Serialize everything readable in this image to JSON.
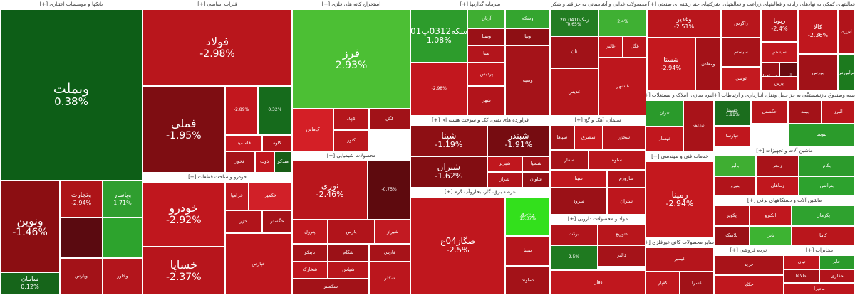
{
  "sectors": [
    {
      "id": "banks",
      "title": "بانکها و موسسات اعتباری [+]",
      "tiles": [
        {
          "name": "وبملت",
          "pct": "0.38%",
          "color": "#0d5e17",
          "size": "xl"
        },
        {
          "name": "ونوین",
          "pct": "-1.46%",
          "color": "#8b0e12",
          "size": "l"
        },
        {
          "name": "وتجارت",
          "pct": "-2.94%",
          "color": "#ad1418",
          "size": "s"
        },
        {
          "name": "وپاسار",
          "pct": "1.71%",
          "color": "#2f9e2f",
          "size": "s"
        },
        {
          "name": "سامان",
          "pct": "0.12%",
          "color": "#16651a",
          "size": "s"
        },
        {
          "name": "",
          "pct": "",
          "color": "#5a0a10",
          "size": "xs"
        },
        {
          "name": "",
          "pct": "",
          "color": "#2da32d",
          "size": "xs"
        },
        {
          "name": "وخاور",
          "pct": "",
          "color": "#b3151c",
          "size": "xs"
        },
        {
          "name": "وپارس",
          "pct": "",
          "color": "#a31218",
          "size": "xs"
        }
      ]
    },
    {
      "id": "metals",
      "title": "فلزات اساسی [+]",
      "tiles": [
        {
          "name": "فولاد",
          "pct": "-2.98%",
          "color": "#b9161c",
          "size": "l"
        },
        {
          "name": "فملی",
          "pct": "-1.95%",
          "color": "#7e0d12",
          "size": "l"
        },
        {
          "name": "",
          "pct": "-2.89%",
          "color": "#c2171e",
          "size": "xs"
        },
        {
          "name": "",
          "pct": "0.32%",
          "color": "#166b1c",
          "size": "xs"
        },
        {
          "name": "فاسمینا",
          "pct": "",
          "color": "#c81a22",
          "size": "xs"
        },
        {
          "name": "کاوه",
          "pct": "",
          "color": "#b1141a",
          "size": "xs"
        },
        {
          "name": "فخوز",
          "pct": "",
          "color": "#a51319",
          "size": "xs"
        },
        {
          "name": "ذوب",
          "pct": "",
          "color": "#c0161d",
          "size": "xs"
        },
        {
          "name": "میدکو",
          "pct": "",
          "color": "#185d16",
          "size": "xs"
        }
      ]
    },
    {
      "id": "mining",
      "title": "استخراج کانه های فلزی [+]",
      "tiles": [
        {
          "name": "فرز",
          "pct": "2.93%",
          "color": "#4cbf34",
          "size": "l"
        },
        {
          "name": "کچاد",
          "pct": "",
          "color": "#b5161c",
          "size": "xs"
        },
        {
          "name": "کگل",
          "pct": "",
          "color": "#a11218",
          "size": "xs"
        },
        {
          "name": "کنور",
          "pct": "",
          "color": "#bb171d",
          "size": "xs"
        },
        {
          "name": "ک‌ماس",
          "pct": "",
          "color": "#d41f26",
          "size": "xs"
        }
      ]
    },
    {
      "id": "investment",
      "title": "سرمایه گذاریها [+]",
      "tiles": [
        {
          "name": "سکه0312پ01",
          "pct": "1.08%",
          "color": "#2d9c2c",
          "size": "m"
        },
        {
          "name": "",
          "pct": "-2.98%",
          "color": "#c2171e",
          "size": "xs"
        },
        {
          "name": "آریان",
          "pct": "",
          "color": "#3fae32",
          "size": "xs"
        },
        {
          "name": "وسکه",
          "pct": "",
          "color": "#34a52f",
          "size": "xs"
        },
        {
          "name": "ویپا",
          "pct": "",
          "color": "#8e0f14",
          "size": "xs"
        },
        {
          "name": "وصنا",
          "pct": "",
          "color": "#9a1117",
          "size": "xs"
        },
        {
          "name": "صبا",
          "pct": "",
          "color": "#b3151c",
          "size": "xs"
        },
        {
          "name": "پردیس",
          "pct": "",
          "color": "#c0161d",
          "size": "xs"
        },
        {
          "name": "شهر",
          "pct": "",
          "color": "#b2141b",
          "size": "xs"
        },
        {
          "name": "وسپه",
          "pct": "",
          "color": "#a51319",
          "size": "xs"
        }
      ]
    },
    {
      "id": "food",
      "title": "محصولات غذایی و آشامیدنی به جز قند و شکر [+]",
      "tiles": [
        {
          "name": "زمگ0410_20",
          "pct": "0.65%",
          "color": "#237d22",
          "size": "xs"
        },
        {
          "name": "",
          "pct": "2.4%",
          "color": "#3fb033",
          "size": "xs"
        },
        {
          "name": "غگل",
          "pct": "",
          "color": "#b9161c",
          "size": "xs"
        },
        {
          "name": "غالبر",
          "pct": "",
          "color": "#c0171e",
          "size": "xs"
        },
        {
          "name": "نان",
          "pct": "",
          "color": "#a11218",
          "size": "xs"
        },
        {
          "name": "غدیس",
          "pct": "",
          "color": "#b4151b",
          "size": "xs"
        },
        {
          "name": "غبشهر",
          "pct": "",
          "color": "#bd161d",
          "size": "xs"
        }
      ]
    },
    {
      "id": "multi",
      "title": "شرکتهای چند رشته ای صنعتی [+]",
      "tiles": [
        {
          "name": "وغدیر",
          "pct": "-2.51%",
          "color": "#b9161c",
          "size": "s"
        },
        {
          "name": "شستا",
          "pct": "-2.94%",
          "color": "#c4181e",
          "size": "s"
        },
        {
          "name": "ومعادن",
          "pct": "",
          "color": "#a31218",
          "size": "xs"
        }
      ]
    },
    {
      "id": "water",
      "title": "زراعت و فعالیتهای وابسته به آن [+]",
      "tiles": [
        {
          "name": "زاگرس",
          "pct": "",
          "color": "#b8161c",
          "size": "xs"
        },
        {
          "name": "سیستم",
          "pct": "",
          "color": "#a71319",
          "size": "xs"
        },
        {
          "name": "توسن",
          "pct": "",
          "color": "#c41a20",
          "size": "xs"
        }
      ]
    },
    {
      "id": "it",
      "title": "رایانه و فعالیتهای وابسته به آن [+]",
      "tiles": [
        {
          "name": "رپویا",
          "pct": "-2.4%",
          "color": "#b5151c",
          "size": "s"
        },
        {
          "name": "سیستم",
          "pct": "",
          "color": "#c0171e",
          "size": "xs"
        },
        {
          "name": "مفن افزار",
          "pct": "",
          "color": "#9b1117",
          "size": "xs"
        },
        {
          "name": "آپ",
          "pct": "",
          "color": "#6a0b10",
          "size": "xs"
        },
        {
          "name": "اپرس",
          "pct": "",
          "color": "#b1141b",
          "size": "xs"
        }
      ]
    },
    {
      "id": "aux",
      "title": "فعالیتهای کمکی به نهادهای [+]",
      "tiles": [
        {
          "name": "کالا",
          "pct": "-2.36%",
          "color": "#c0171e",
          "size": "s"
        },
        {
          "name": "انرژی",
          "pct": "",
          "color": "#b1141b",
          "size": "xs"
        },
        {
          "name": "فرابورس",
          "pct": "",
          "color": "#1c7a1e",
          "size": "xs"
        },
        {
          "name": "بورس",
          "pct": "",
          "color": "#a11218",
          "size": "xs"
        }
      ]
    },
    {
      "id": "petroleum",
      "title": "فراورده های نفتی، کک و سوخت هسته ای [+]",
      "tiles": [
        {
          "name": "شپنا",
          "pct": "-1.19%",
          "color": "#8e0f14",
          "size": "m"
        },
        {
          "name": "شبندر",
          "pct": "-1.91%",
          "color": "#760c11",
          "size": "m"
        },
        {
          "name": "شتران",
          "pct": "-1.62%",
          "color": "#820d12",
          "size": "m"
        },
        {
          "name": "شبریز",
          "pct": "",
          "color": "#c0171e",
          "size": "xs"
        },
        {
          "name": "شسپا",
          "pct": "",
          "color": "#a51319",
          "size": "xs"
        },
        {
          "name": "شراز",
          "pct": "",
          "color": "#b1141b",
          "size": "xs"
        },
        {
          "name": "شاوان",
          "pct": "",
          "color": "#941016",
          "size": "xs"
        }
      ]
    },
    {
      "id": "cement",
      "title": "سیمان، آهک و گچ [+]",
      "tiles": [
        {
          "name": "سخزر",
          "pct": "",
          "color": "#b5151c",
          "size": "xs"
        },
        {
          "name": "سشرق",
          "pct": "",
          "color": "#c4181e",
          "size": "xs"
        },
        {
          "name": "سپاها",
          "pct": "",
          "color": "#a11218",
          "size": "xs"
        },
        {
          "name": "ساوه",
          "pct": "",
          "color": "#b9161c",
          "size": "xs"
        },
        {
          "name": "سفار",
          "pct": "",
          "color": "#a71319",
          "size": "xs"
        },
        {
          "name": "سیتا",
          "pct": "",
          "color": "#c0171e",
          "size": "xs"
        },
        {
          "name": "سارورم",
          "pct": "",
          "color": "#b1141b",
          "size": "xs"
        },
        {
          "name": "سرود",
          "pct": "",
          "color": "#9b1117",
          "size": "xs"
        },
        {
          "name": "ستران",
          "pct": "",
          "color": "#bd161d",
          "size": "xs"
        }
      ]
    },
    {
      "id": "realestate",
      "title": "انبوه سازی، املاک و مستغلات [+]",
      "tiles": [
        {
          "name": "ثتران",
          "pct": "",
          "color": "#2a9a2b",
          "size": "xs"
        },
        {
          "name": "ثهساز",
          "pct": "",
          "color": "#c1171e",
          "size": "xs"
        },
        {
          "name": "ثشاهد",
          "pct": "",
          "color": "#a81319",
          "size": "xs"
        }
      ]
    },
    {
      "id": "transport",
      "title": "حمل ونقل، انبارداری و ارتباطات [+]",
      "tiles": [
        {
          "name": "حکشتی",
          "pct": "",
          "color": "#b8161c",
          "size": "xs"
        },
        {
          "name": "حسینا",
          "pct": "1.91%",
          "color": "#1b6d1d",
          "size": "xs"
        },
        {
          "name": "حپارسا",
          "pct": "",
          "color": "#c0171e",
          "size": "xs"
        }
      ]
    },
    {
      "id": "bankfund",
      "title": "بیمه وصندوق بازنشستگی به جز [+]",
      "tiles": [
        {
          "name": "بیمه",
          "pct": "",
          "color": "#a31218",
          "size": "xs"
        },
        {
          "name": "البرز",
          "pct": "",
          "color": "#b9161c",
          "size": "xs"
        },
        {
          "name": "ثنوسا",
          "pct": "",
          "color": "#2b9b2b",
          "size": "xs"
        }
      ]
    },
    {
      "id": "chemical",
      "title": "محصولات شیمیایی [+]",
      "tiles": [
        {
          "name": "نوری",
          "pct": "-2.46%",
          "color": "#b9161c",
          "size": "m"
        },
        {
          "name": "",
          "pct": "-0.75%",
          "color": "#5e0a0e",
          "size": "xs"
        },
        {
          "name": "پترول",
          "pct": "",
          "color": "#c0171e",
          "size": "xs"
        },
        {
          "name": "پارس",
          "pct": "",
          "color": "#b1141b",
          "size": "xs"
        },
        {
          "name": "شیراز",
          "pct": "",
          "color": "#c21a22",
          "size": "xs"
        },
        {
          "name": "تاپیکو",
          "pct": "",
          "color": "#a51319",
          "size": "xs"
        },
        {
          "name": "شگام",
          "pct": "",
          "color": "#9b1117",
          "size": "xs"
        },
        {
          "name": "شپاس",
          "pct": "",
          "color": "#b8161c",
          "size": "xs"
        },
        {
          "name": "فارس",
          "pct": "",
          "color": "#a71319",
          "size": "xs"
        },
        {
          "name": "شخارک",
          "pct": "",
          "color": "#c0171e",
          "size": "xs"
        },
        {
          "name": "شکلر",
          "pct": "",
          "color": "#bb161d",
          "size": "xs"
        },
        {
          "name": "شکستر",
          "pct": "",
          "color": "#a21218",
          "size": "xs"
        }
      ]
    },
    {
      "id": "utility",
      "title": "عرضه برق، گاز، بخاروآب گرم [+]",
      "tiles": [
        {
          "name": "صگاز04ع",
          "pct": "-2.5%",
          "color": "#c0171e",
          "size": "m"
        },
        {
          "name": "ولشرق",
          "pct": "15.07%",
          "color": "#33e01c",
          "size": "xs"
        },
        {
          "name": "بمپنا",
          "pct": "",
          "color": "#b5151c",
          "size": "xs"
        },
        {
          "name": "دماوند",
          "pct": "",
          "color": "#a31218",
          "size": "xs"
        }
      ]
    },
    {
      "id": "auto",
      "title": "خودرو و ساخت قطعات [+]",
      "tiles": [
        {
          "name": "خودرو",
          "pct": "-2.92%",
          "color": "#c0171e",
          "size": "l"
        },
        {
          "name": "خساپا",
          "pct": "-2.37%",
          "color": "#b7151c",
          "size": "l"
        },
        {
          "name": "خکمپر",
          "pct": "",
          "color": "#d12028",
          "size": "xs"
        },
        {
          "name": "خزامیا",
          "pct": "",
          "color": "#c01a22",
          "size": "xs"
        },
        {
          "name": "خزر",
          "pct": "",
          "color": "#b1141b",
          "size": "xs"
        },
        {
          "name": "خگستر",
          "pct": "",
          "color": "#a51319",
          "size": "xs"
        },
        {
          "name": "خپارس",
          "pct": "",
          "color": "#bd161d",
          "size": "xs"
        }
      ]
    },
    {
      "id": "pharma",
      "title": "مواد و محصولات دارویی [+]",
      "tiles": [
        {
          "name": "برکت",
          "pct": "",
          "color": "#b1141b",
          "size": "xs"
        },
        {
          "name": "دتوزیع",
          "pct": "",
          "color": "#b8161c",
          "size": "xs"
        },
        {
          "name": "دالبر",
          "pct": "",
          "color": "#a51319",
          "size": "xs"
        },
        {
          "name": "",
          "pct": "2.5%",
          "color": "#1f7a20",
          "size": "xs"
        },
        {
          "name": "دفارا",
          "pct": "",
          "color": "#c0171e",
          "size": "xs"
        }
      ]
    },
    {
      "id": "engineering",
      "title": "خدمات فنی و مهندسی [+]",
      "tiles": [
        {
          "name": "رمپنا",
          "pct": "-2.94%",
          "color": "#c4181e",
          "size": "m"
        }
      ]
    },
    {
      "id": "nonmetal",
      "title": "سایر محصولات کانی غیرفلزی [+]",
      "tiles": [
        {
          "name": "کیمیر",
          "pct": "",
          "color": "#b5151c",
          "size": "xs"
        },
        {
          "name": "کسرا",
          "pct": "",
          "color": "#a11218",
          "size": "xs"
        },
        {
          "name": "کفپار",
          "pct": "",
          "color": "#c0171e",
          "size": "xs"
        }
      ]
    },
    {
      "id": "machines",
      "title": "ماشین آلات و تجهیزات [+]",
      "tiles": [
        {
          "name": "بکام",
          "pct": "",
          "color": "#2c9b2c",
          "size": "xs"
        },
        {
          "name": "زنجر",
          "pct": "",
          "color": "#a81319",
          "size": "xs"
        },
        {
          "name": "بالبر",
          "pct": "",
          "color": "#3fae32",
          "size": "xs"
        },
        {
          "name": "بترانس",
          "pct": "",
          "color": "#2da22e",
          "size": "xs"
        },
        {
          "name": "زماهان",
          "pct": "",
          "color": "#c0171e",
          "size": "xs"
        },
        {
          "name": "بنیرو",
          "pct": "",
          "color": "#b1141b",
          "size": "xs"
        }
      ]
    },
    {
      "id": "electric",
      "title": "ماشین آلات و دستگاههای برقی [+]",
      "tiles": [
        {
          "name": "پکرمان",
          "pct": "",
          "color": "#2fa22f",
          "size": "xs"
        },
        {
          "name": "الکترو",
          "pct": "",
          "color": "#c0171e",
          "size": "xs"
        },
        {
          "name": "پکویر",
          "pct": "",
          "color": "#b4151b",
          "size": "xs"
        },
        {
          "name": "پلاسک",
          "pct": "",
          "color": "#9a1117",
          "size": "xs"
        },
        {
          "name": "تایرا",
          "pct": "",
          "color": "#3db332",
          "size": "xs"
        },
        {
          "name": "کاما",
          "pct": "",
          "color": "#b9161c",
          "size": "xs"
        }
      ]
    },
    {
      "id": "telecom",
      "title": "مخابرات [+]",
      "tiles": [
        {
          "name": "اخابر",
          "pct": "",
          "color": "#2a9a2b",
          "size": "xs"
        },
        {
          "name": "تیان",
          "pct": "",
          "color": "#c0171e",
          "size": "xs"
        },
        {
          "name": "حفاری",
          "pct": "",
          "color": "#b1141b",
          "size": "xs"
        },
        {
          "name": "اطلاعا",
          "pct": "",
          "color": "#a51319",
          "size": "xs"
        },
        {
          "name": "مادیرا",
          "pct": "",
          "color": "#bd161d",
          "size": "xs"
        }
      ]
    },
    {
      "id": "retail",
      "title": "خرده فروشی [+]",
      "tiles": [
        {
          "name": "خرید",
          "pct": "",
          "color": "#a81319",
          "size": "xs"
        },
        {
          "name": "چکاپا",
          "pct": "",
          "color": "#c0171e",
          "size": "xs"
        }
      ]
    }
  ]
}
